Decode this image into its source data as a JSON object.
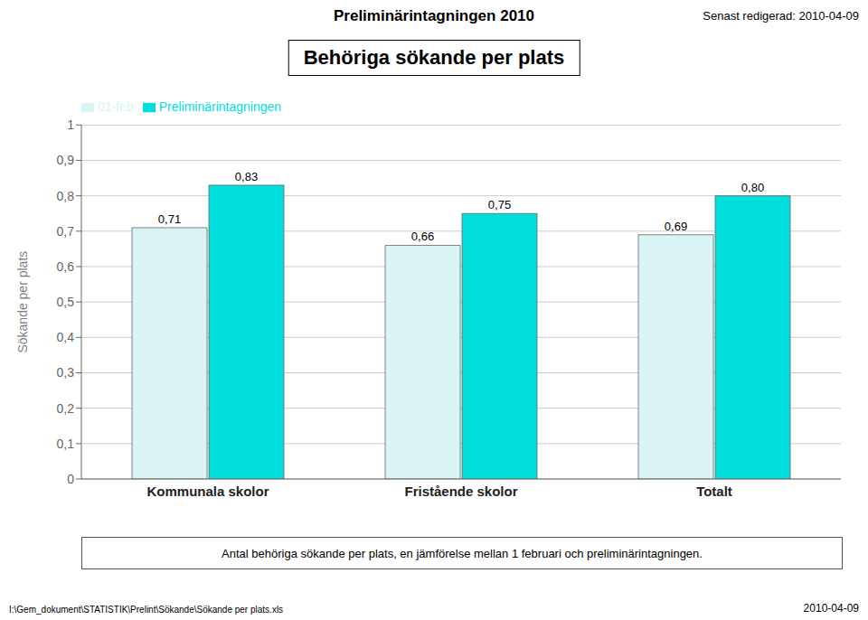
{
  "chart_data": {
    "type": "bar",
    "title": "Behöriga sökande per plats",
    "subtitle": "Preliminärintagningen 2010",
    "ylabel": "Sökande per plats",
    "categories": [
      "Kommunala skolor",
      "Fristående skolor",
      "Totalt"
    ],
    "series": [
      {
        "name": "01-feb",
        "color": "#D8F4F4",
        "values": [
          0.71,
          0.66,
          0.69
        ],
        "value_labels": [
          "0,71",
          "0,66",
          "0,69"
        ]
      },
      {
        "name": "Preliminärintagningen",
        "color": "#00DEDE",
        "values": [
          0.83,
          0.75,
          0.8
        ],
        "value_labels": [
          "0,83",
          "0,75",
          "0,80"
        ]
      }
    ],
    "ylim": [
      0,
      1.0
    ],
    "yticks": [
      0,
      {
        "value": 0.1,
        "label": "0,1"
      },
      {
        "value": 0.2,
        "label": "0,2"
      },
      {
        "value": 0.3,
        "label": "0,3"
      },
      {
        "value": 0.4,
        "label": "0,4"
      },
      {
        "value": 0.5,
        "label": "0,5"
      },
      {
        "value": 0.6,
        "label": "0,6"
      },
      {
        "value": 0.7,
        "label": "0,7"
      },
      {
        "value": 0.8,
        "label": "0,8"
      },
      {
        "value": 0.9,
        "label": "0,9"
      },
      1
    ],
    "grid": true,
    "legend": "upper left",
    "data_labels": true,
    "annotations": [
      "Senast redigerad: 2010-04-09",
      "Antal behöriga sökande per plats, en jämförelse mellan 1 februari och preliminärintagningen.",
      "I:\\Gem_dokument\\STATISTIK\\Prelint\\Sökande\\Sökande per plats.xls",
      "2010-04-09"
    ]
  }
}
